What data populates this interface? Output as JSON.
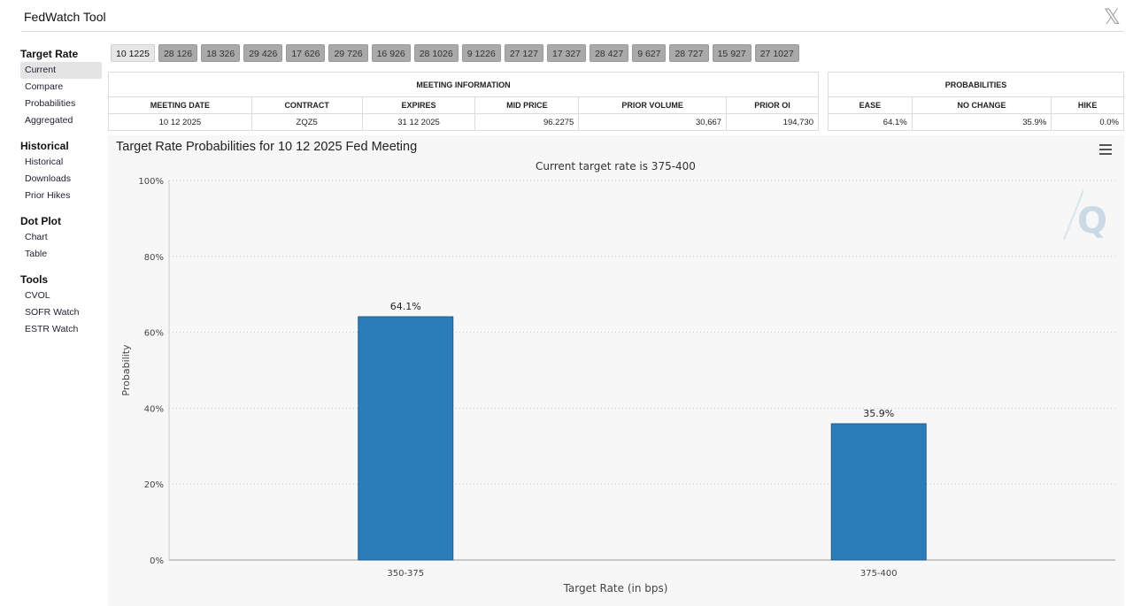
{
  "app": {
    "title": "FedWatch Tool",
    "close_icon": "x-logo-icon"
  },
  "sidebar": {
    "sections": [
      {
        "title": "Target Rate",
        "items": [
          "Current",
          "Compare",
          "Probabilities",
          "Aggregated"
        ]
      },
      {
        "title": "Historical",
        "items": [
          "Historical",
          "Downloads",
          "Prior Hikes"
        ]
      },
      {
        "title": "Dot Plot",
        "items": [
          "Chart",
          "Table"
        ]
      },
      {
        "title": "Tools",
        "items": [
          "CVOL",
          "SOFR Watch",
          "ESTR Watch"
        ]
      }
    ],
    "active_item": "Current"
  },
  "meeting_tabs": [
    "10 1225",
    "28 126",
    "18 326",
    "29 426",
    "17 626",
    "29 726",
    "16 926",
    "28 1026",
    "9 1226",
    "27 127",
    "17 327",
    "28 427",
    "9 627",
    "28 727",
    "15 927",
    "27 1027"
  ],
  "active_tab": "10 1225",
  "meeting_info": {
    "heading": "MEETING INFORMATION",
    "columns": [
      "MEETING DATE",
      "CONTRACT",
      "EXPIRES",
      "MID PRICE",
      "PRIOR VOLUME",
      "PRIOR OI"
    ],
    "row": {
      "meeting_date": "10 12 2025",
      "contract": "ZQZ5",
      "expires": "31 12 2025",
      "mid_price": "96.2275",
      "prior_volume": "30,667",
      "prior_oi": "194,730"
    }
  },
  "probabilities": {
    "heading": "PROBABILITIES",
    "columns": [
      "EASE",
      "NO CHANGE",
      "HIKE"
    ],
    "row": {
      "ease": "64.1%",
      "no_change": "35.9%",
      "hike": "0.0%"
    }
  },
  "chart_data": {
    "type": "bar",
    "title": "Target Rate Probabilities for 10 12 2025 Fed Meeting",
    "subtitle": "Current target rate is 375-400",
    "categories": [
      "350-375",
      "375-400"
    ],
    "values": [
      64.1,
      35.9
    ],
    "data_labels": [
      "64.1%",
      "35.9%"
    ],
    "xlabel": "Target Rate (in bps)",
    "ylabel": "Probability",
    "ylim": [
      0,
      100
    ],
    "yticks": [
      0,
      20,
      40,
      60,
      80,
      100
    ],
    "ytick_labels": [
      "0%",
      "20%",
      "40%",
      "60%",
      "80%",
      "100%"
    ],
    "grid": "horizontal dotted",
    "bar_color": "#2a7db8",
    "watermark": "Q"
  }
}
